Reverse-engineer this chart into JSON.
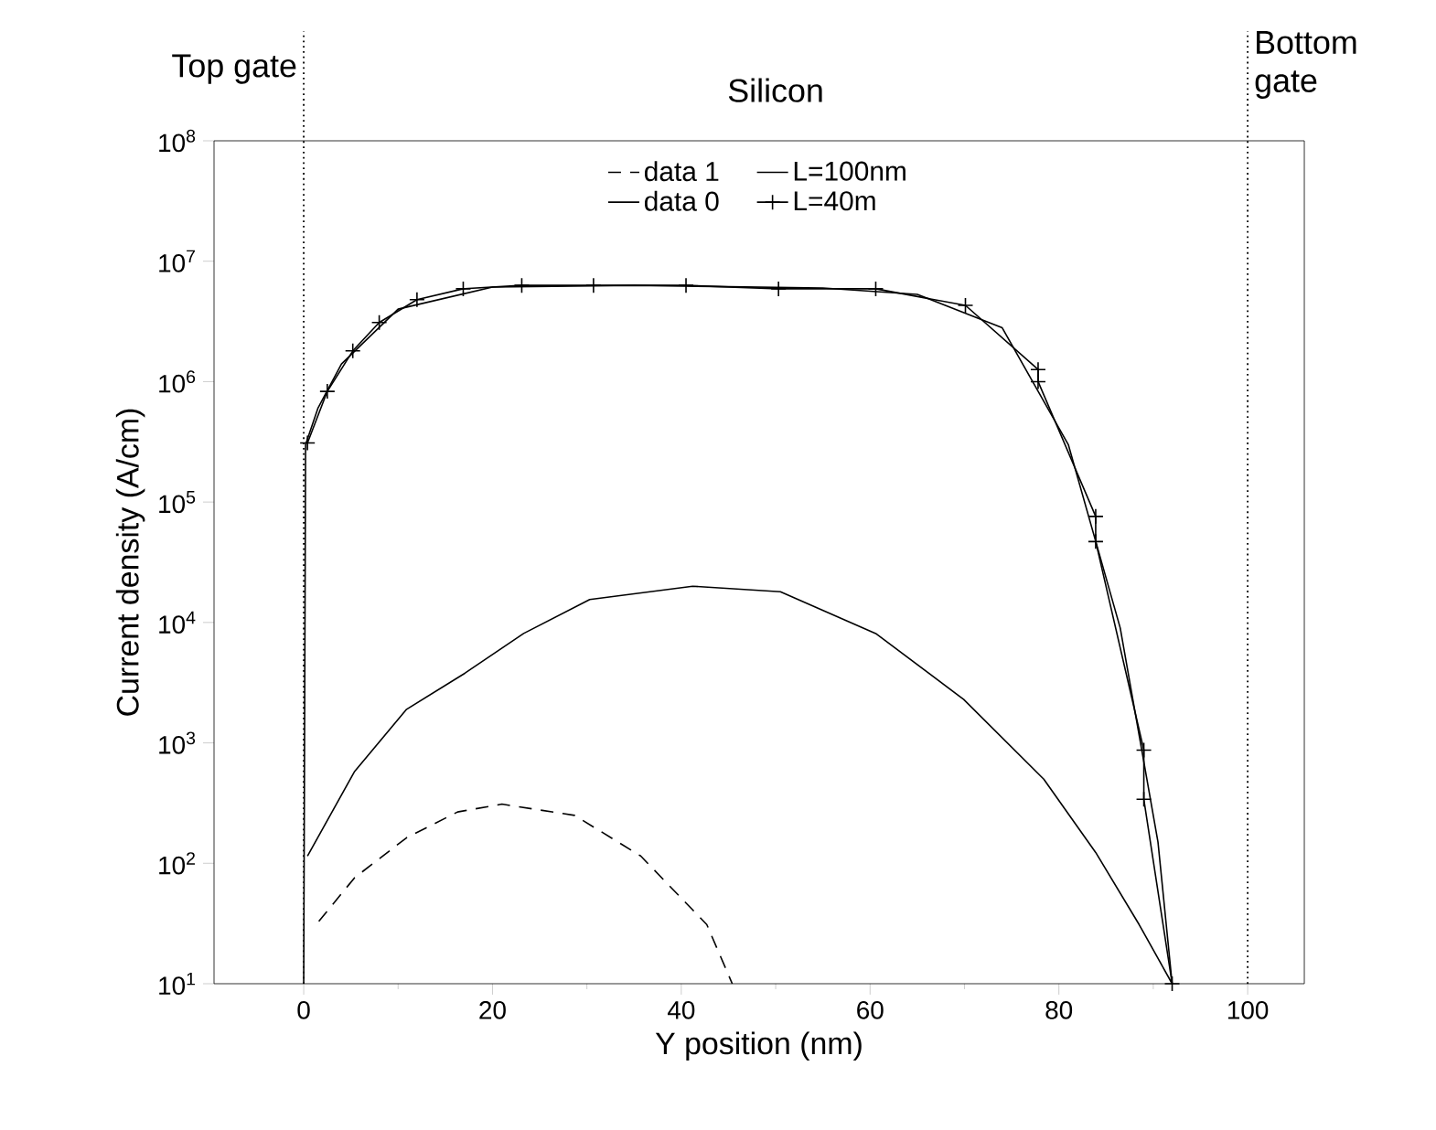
{
  "chart_data": {
    "type": "line",
    "xlabel": "Y position (nm)",
    "ylabel": "Current density (A/cm)",
    "log": "y",
    "xlim": [
      -9.5,
      106
    ],
    "ylim": [
      10,
      100000000
    ],
    "xticks": [
      0,
      20,
      40,
      60,
      80,
      100
    ],
    "yticks": [
      {
        "value": 10,
        "label": "10$^{1}$"
      },
      {
        "value": 100,
        "label": "10$^{2}$"
      },
      {
        "value": 1000,
        "label": "10$^{3}$"
      },
      {
        "value": 10000,
        "label": "10$^{4}$"
      },
      {
        "value": 100000,
        "label": "10$^{5}$"
      },
      {
        "value": 1000000,
        "label": "10$^{6}$"
      },
      {
        "value": 10000000,
        "label": "10$^{7}$"
      },
      {
        "value": 100000000,
        "label": "10$^{8}$"
      }
    ],
    "legend": "top",
    "grid": false,
    "series": [
      {
        "name": "data 1",
        "color": "#000000",
        "line_style": "dashed",
        "marker": "none",
        "x": [
          1.6,
          5.4,
          10.9,
          16.3,
          21.0,
          28.7,
          35.7,
          42.7,
          45.4
        ],
        "values": [
          33,
          76,
          163,
          267,
          310,
          250,
          115,
          31,
          10
        ]
      },
      {
        "name": "L=100nm",
        "color": "#000000",
        "line_style": "solid",
        "marker": "none",
        "x": [
          0,
          0.2,
          1.5,
          4,
          10,
          20,
          35,
          55,
          65,
          74,
          81,
          86.5,
          90.5,
          92
        ],
        "values": [
          10,
          300000,
          600000,
          1400000,
          4000000,
          6100000,
          6300000,
          6000000,
          5300000,
          2800000,
          300000,
          9000,
          150,
          10
        ]
      },
      {
        "name": "data 0",
        "color": "#000000",
        "line_style": "solid",
        "marker": "none",
        "x": [
          0.4,
          5.4,
          10.9,
          17.1,
          23.3,
          30.3,
          41.2,
          50.5,
          60.6,
          69.9,
          78.4,
          83.9,
          88.5,
          92.0
        ],
        "values": [
          115,
          580,
          1900,
          3800,
          8100,
          15500,
          20000,
          18000,
          8100,
          2300,
          500,
          123,
          31,
          10
        ]
      },
      {
        "name": "L=40m",
        "color": "#000000",
        "line_style": "solid",
        "marker": "cross",
        "x": [
          0.4,
          2.5,
          5.2,
          8.0,
          12.0,
          16.9,
          23.1,
          30.7,
          40.5,
          50.3,
          60.6,
          70.1,
          77.8,
          77.8,
          83.9,
          83.9,
          89.0,
          89.0,
          92.0
        ],
        "values": [
          310000,
          830000,
          1800000,
          3100000,
          4800000,
          5900000,
          6300000,
          6300000,
          6300000,
          5900000,
          5900000,
          4300000,
          1260000,
          1000000,
          76000,
          47000,
          870,
          340,
          10
        ]
      }
    ],
    "ref_lines": [
      {
        "axis": "x",
        "value": 0,
        "line_style": "dotted"
      },
      {
        "axis": "x",
        "value": 100,
        "line_style": "dotted"
      }
    ],
    "annotations": [
      "Top gate",
      "Silicon",
      "Bottom gate"
    ]
  }
}
